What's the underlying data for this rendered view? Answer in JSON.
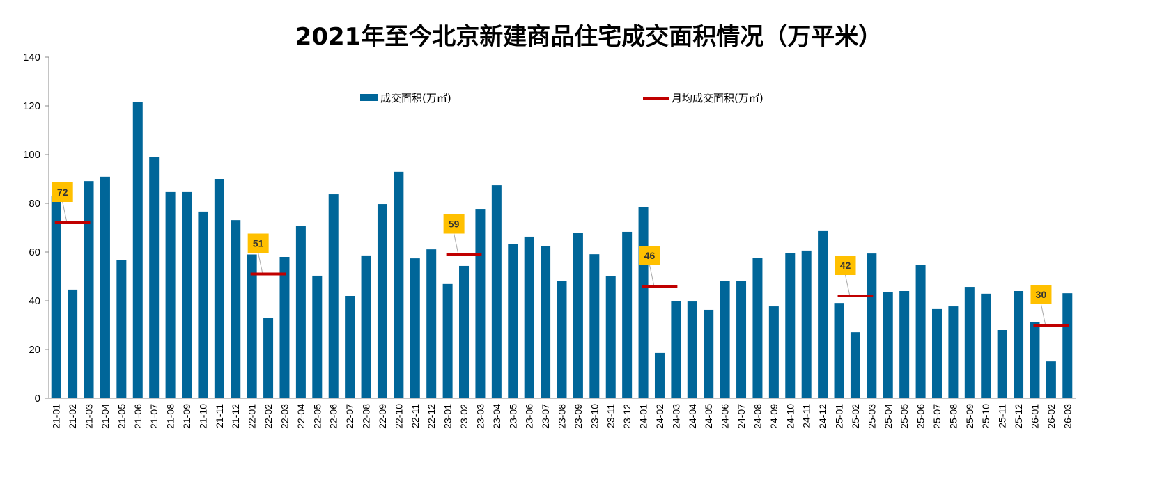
{
  "chart_data": {
    "type": "bar",
    "title": "2021年至今北京新建商品住宅成交面积情况（万平米）",
    "xlabel": "",
    "ylabel": "",
    "ylim": [
      0,
      140
    ],
    "yticks": [
      0,
      20,
      40,
      60,
      80,
      100,
      120,
      140
    ],
    "grid": false,
    "legend_position": "top",
    "colors": {
      "bar": "#006699",
      "avg_line": "#C00000",
      "label_bg": "#FFC000"
    },
    "categories": [
      "21-01",
      "21-02",
      "21-03",
      "21-04",
      "21-05",
      "21-06",
      "21-07",
      "21-08",
      "21-09",
      "21-10",
      "21-11",
      "21-12",
      "22-01",
      "22-02",
      "22-03",
      "22-04",
      "22-05",
      "22-06",
      "22-07",
      "22-08",
      "22-09",
      "22-10",
      "22-11",
      "22-12",
      "23-01",
      "23-02",
      "23-03",
      "23-04",
      "23-05",
      "23-06",
      "23-07",
      "23-08",
      "23-09",
      "23-10",
      "23-11",
      "23-12",
      "24-01",
      "24-02",
      "24-03",
      "24-04",
      "24-05",
      "24-06",
      "24-07",
      "24-08",
      "24-09",
      "24-10",
      "24-11",
      "24-12",
      "25-01",
      "25-02",
      "25-03",
      "25-04",
      "25-05",
      "25-06",
      "25-07",
      "25-08",
      "25-09",
      "25-10",
      "25-11",
      "25-12",
      "26-01",
      "26-02",
      "26-03"
    ],
    "series": [
      {
        "name": "成交面积(万㎡)",
        "type": "bar",
        "values": [
          83.1,
          44.6,
          89.1,
          90.9,
          56.6,
          121.7,
          99.1,
          84.6,
          84.6,
          76.6,
          90.0,
          73.1,
          59.0,
          32.9,
          58.0,
          70.6,
          50.3,
          83.7,
          42.0,
          58.6,
          79.7,
          92.9,
          57.4,
          61.1,
          46.9,
          54.3,
          77.7,
          87.4,
          63.4,
          66.3,
          62.3,
          48.0,
          68.0,
          59.1,
          50.0,
          68.3,
          78.3,
          18.6,
          40.0,
          39.7,
          36.3,
          48.0,
          48.0,
          57.7,
          37.7,
          59.7,
          60.6,
          68.6,
          39.1,
          27.1,
          59.4,
          43.7,
          44.0,
          54.6,
          36.6,
          37.7,
          45.7,
          42.9,
          28.0,
          44.0,
          31.4,
          15.1,
          43.1
        ]
      },
      {
        "name": "月均成交面积(万㎡)",
        "type": "line-segment",
        "segments": [
          {
            "start": "21-01",
            "end": "21-03",
            "value": 72,
            "label": "72"
          },
          {
            "start": "22-01",
            "end": "22-03",
            "value": 51,
            "label": "51"
          },
          {
            "start": "23-01",
            "end": "23-03",
            "value": 59,
            "label": "59"
          },
          {
            "start": "24-01",
            "end": "24-03",
            "value": 46,
            "label": "46"
          },
          {
            "start": "25-01",
            "end": "25-03",
            "value": 42,
            "label": "42"
          },
          {
            "start": "26-01",
            "end": "26-03",
            "value": 30,
            "label": "30"
          }
        ]
      }
    ]
  }
}
